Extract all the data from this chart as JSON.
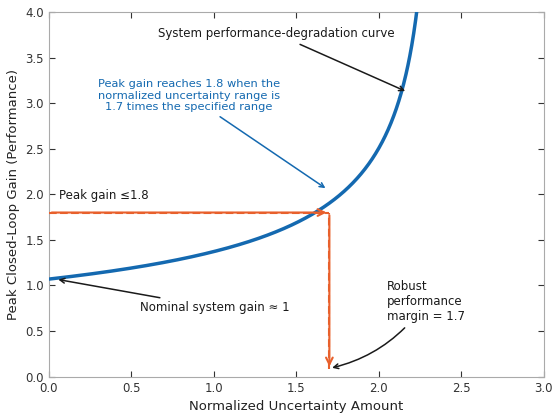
{
  "xlabel": "Normalized Uncertainty Amount",
  "ylabel": "Peak Closed-Loop Gain (Performance)",
  "xlim": [
    0,
    3
  ],
  "ylim": [
    0,
    4
  ],
  "xticks": [
    0,
    0.5,
    1,
    1.5,
    2,
    2.5,
    3
  ],
  "yticks": [
    0,
    0.5,
    1,
    1.5,
    2,
    2.5,
    3,
    3.5,
    4
  ],
  "curve_color": "#1469b0",
  "curve_linewidth": 2.5,
  "marker_x": 1.7,
  "marker_y": 1.8,
  "dashed_color": "#e8602c",
  "annotation_curve_text": "System performance-degradation curve",
  "annotation_blue_text": "Peak gain reaches 1.8 when the\nnormalized uncertainty range is\n1.7 times the specified range",
  "annotation_peak_gain": "Peak gain ≤1.8",
  "annotation_nominal": "Nominal system gain ≈ 1",
  "annotation_robust": "Robust\nperformance\nmargin = 1.7",
  "bg_color": "#ffffff",
  "text_color_black": "#1a1a1a",
  "text_color_blue": "#1469b0",
  "text_color_orange": "#e8602c",
  "curve_xmax": 2.355,
  "curve_power": 0.45,
  "curve_scale": 1.07
}
